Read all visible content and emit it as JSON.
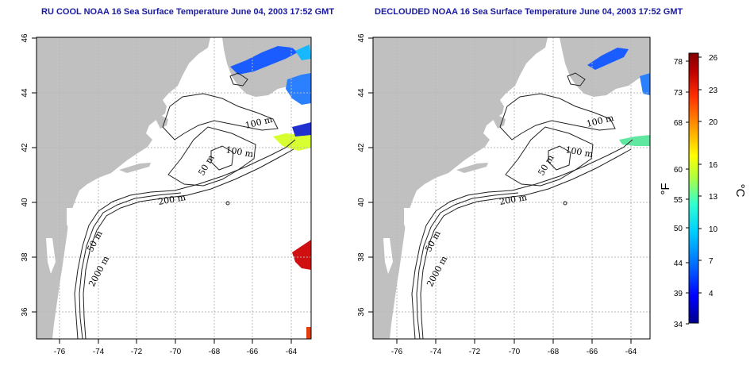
{
  "panels": [
    {
      "id": "ru-cool",
      "title": "RU COOL NOAA 16 Sea Surface Temperature June 04, 2003 17:52 GMT"
    },
    {
      "id": "declouded",
      "title": "DECLOUDED NOAA 16 Sea Surface Temperature June 04, 2003 17:52 GMT"
    }
  ],
  "axes": {
    "lon_ticks": [
      "-76",
      "-74",
      "-72",
      "-70",
      "-68",
      "-66",
      "-64"
    ],
    "lat_ticks": [
      "46",
      "44",
      "42",
      "40",
      "38",
      "36"
    ]
  },
  "contour_labels": [
    "100 m",
    "100 m",
    "50 m",
    "200 m",
    "50 m",
    "2000 m"
  ],
  "colorbar": {
    "fahrenheit_unit": "°F",
    "celsius_unit": "°C",
    "fahrenheit_ticks": [
      "78",
      "73",
      "68",
      "60",
      "55",
      "50",
      "44",
      "39",
      "34"
    ],
    "celsius_ticks": [
      "26",
      "23",
      "20",
      "16",
      "13",
      "10",
      "7",
      "4"
    ],
    "colors": [
      "#00008c",
      "#0000ff",
      "#0070ff",
      "#00d0ff",
      "#30ffd0",
      "#b0ff40",
      "#ffff00",
      "#ffa000",
      "#ff3000",
      "#c00000",
      "#800000"
    ]
  },
  "map_colors": {
    "land": "#c0c0c0",
    "ocean": "#ffffff",
    "grid": "#b8b8b8"
  }
}
